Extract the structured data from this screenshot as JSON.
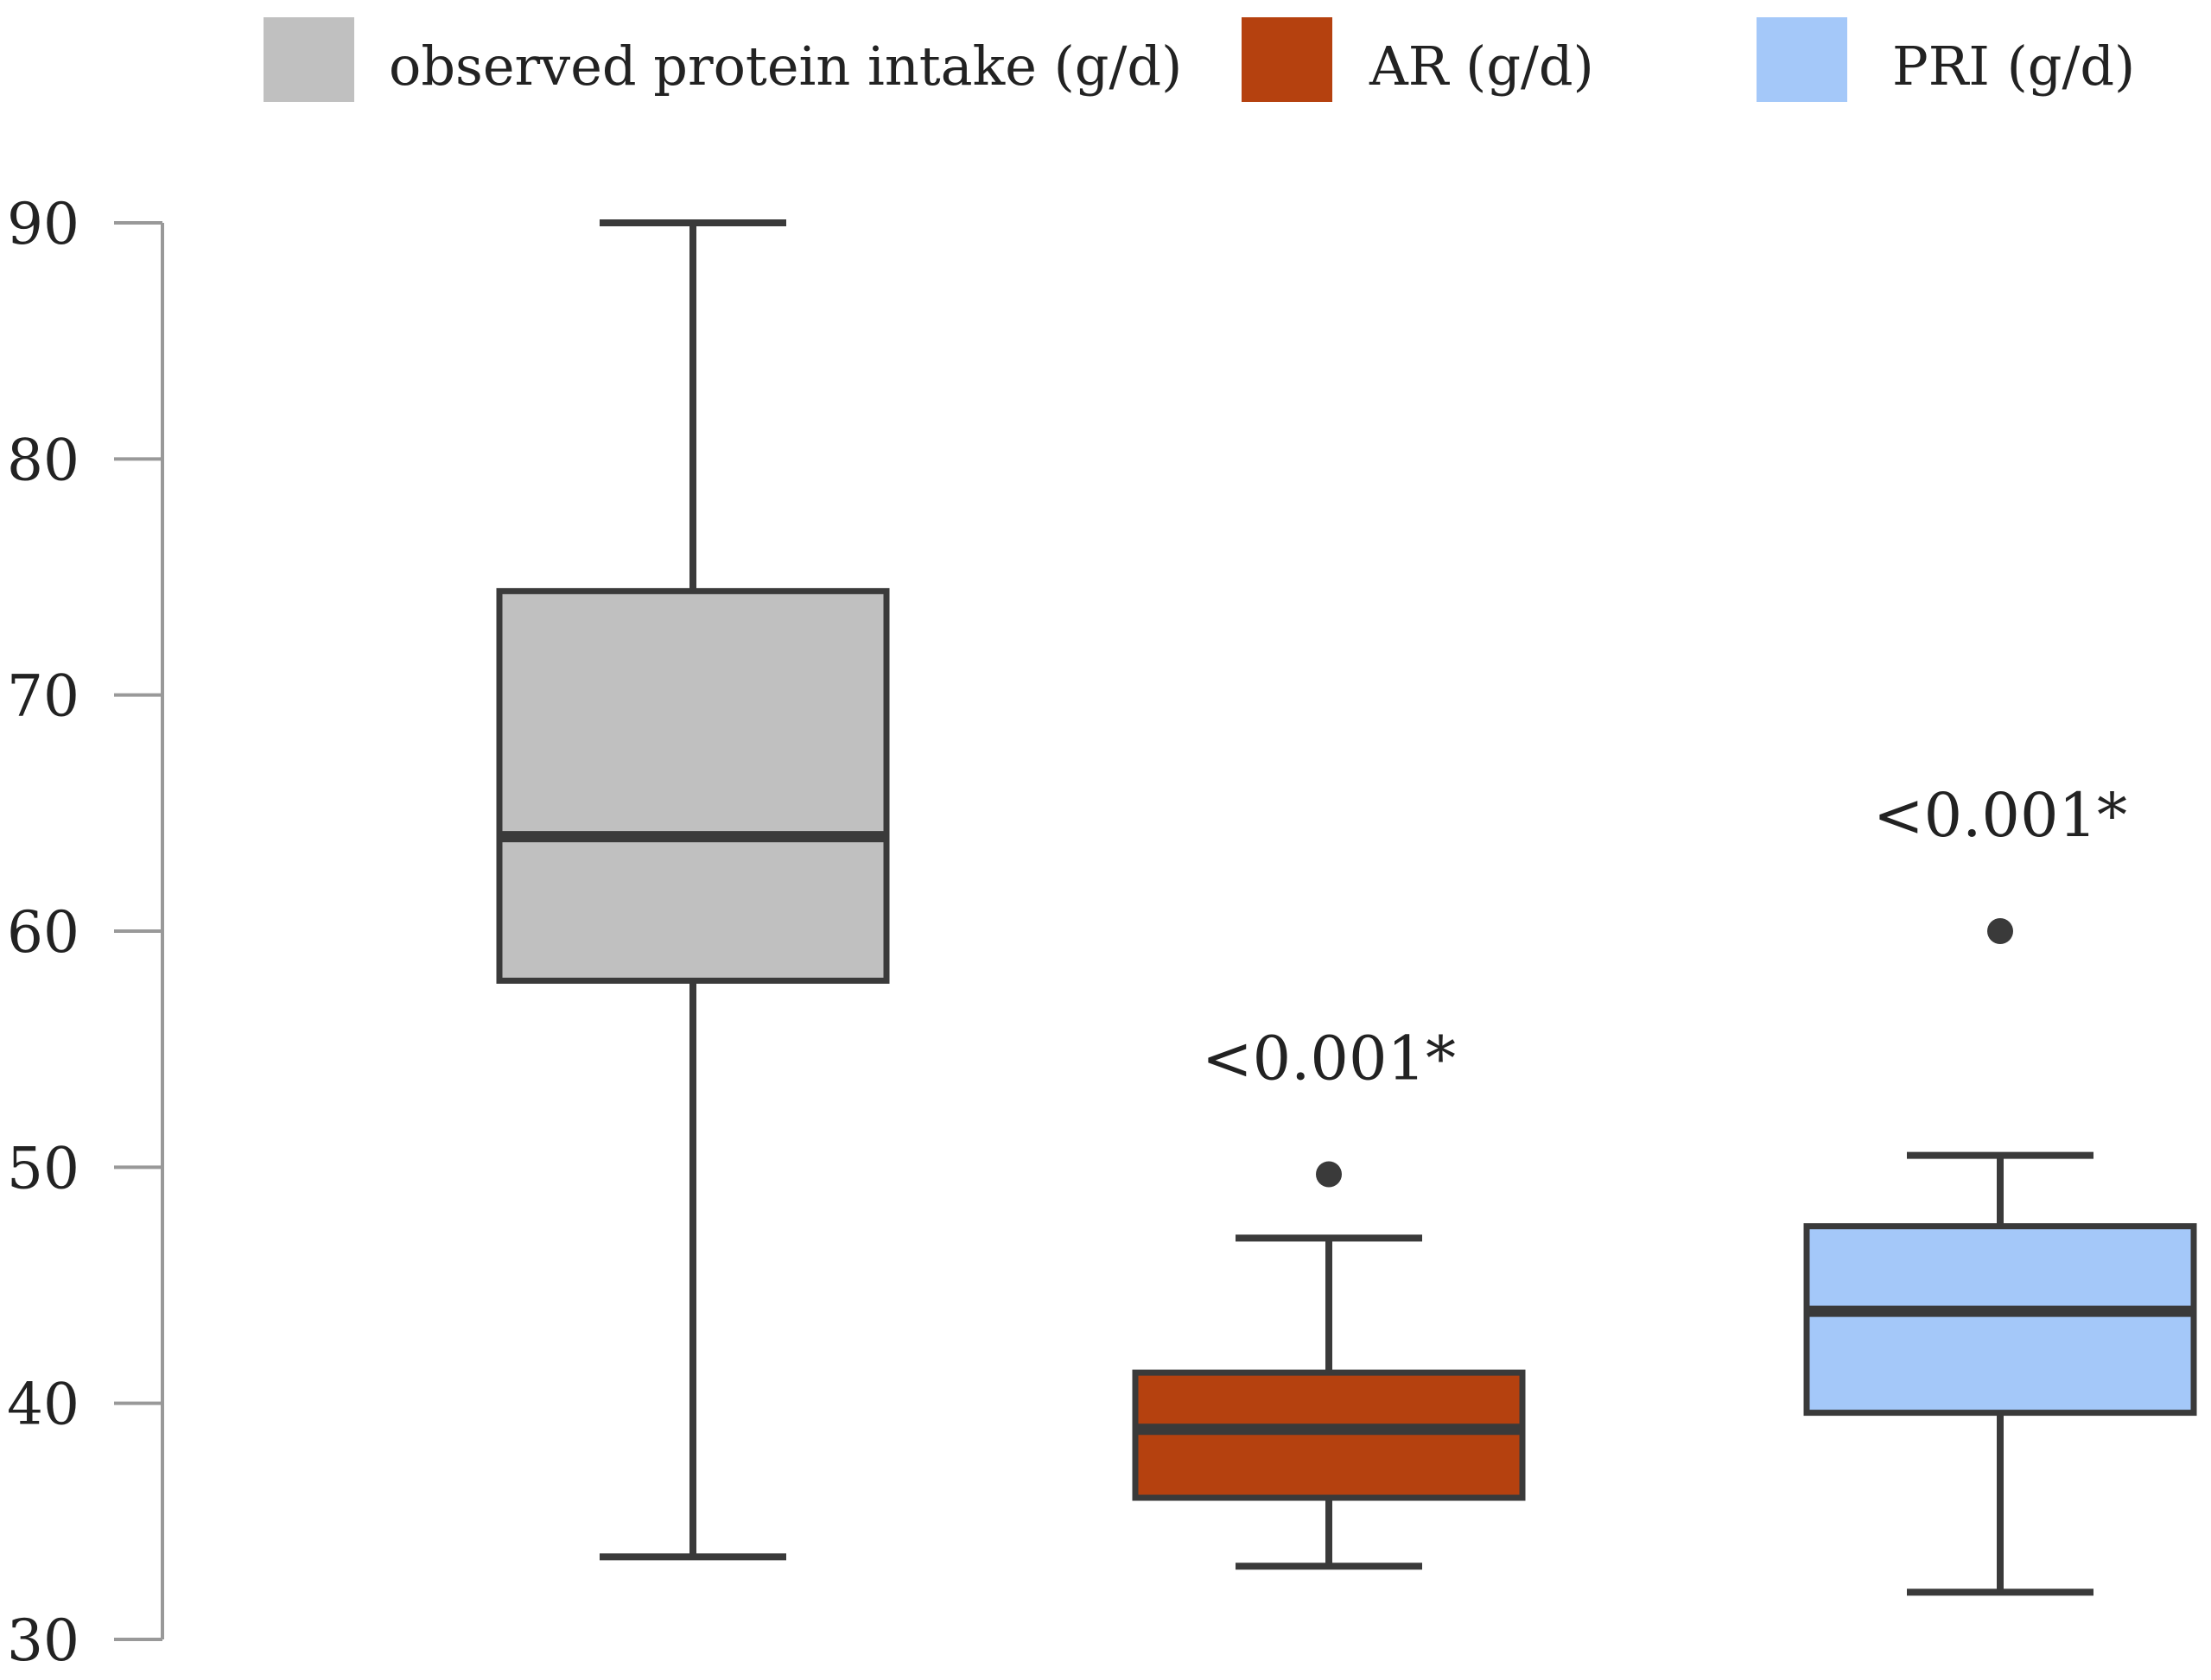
{
  "chart_data": {
    "type": "box",
    "title": "",
    "xlabel": "",
    "ylabel": "",
    "ylim": [
      30,
      90
    ],
    "yticks": [
      30,
      40,
      50,
      60,
      70,
      80,
      90
    ],
    "legend_position": "top",
    "grid": false,
    "series": [
      {
        "name": "observed protein intake (g/d)",
        "color": "#c0c0c0",
        "whisker_low": 33.5,
        "q1": 57.9,
        "median": 64.0,
        "q3": 74.4,
        "whisker_high": 90.0,
        "outliers": [],
        "annotation": ""
      },
      {
        "name": "AR (g/d)",
        "color": "#b5410f",
        "whisker_low": 33.1,
        "q1": 36.0,
        "median": 38.9,
        "q3": 41.3,
        "whisker_high": 47.0,
        "outliers": [
          49.7
        ],
        "annotation": "<0.001*"
      },
      {
        "name": "PRI (g/d)",
        "color": "#a4c8f9",
        "whisker_low": 32.0,
        "q1": 39.6,
        "median": 43.9,
        "q3": 47.5,
        "whisker_high": 50.5,
        "outliers": [
          60.0
        ],
        "annotation": "<0.001*"
      }
    ]
  }
}
